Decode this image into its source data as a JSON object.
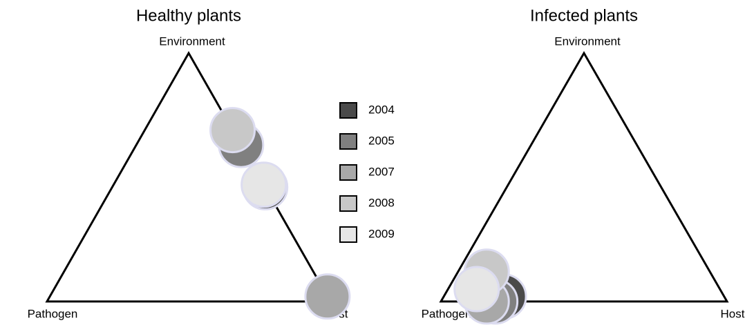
{
  "chart_data": [
    {
      "type": "ternary",
      "title": "Healthy plants",
      "vertex_labels": [
        "Pathogen",
        "Host",
        "Environment"
      ],
      "series": [
        {
          "name": "2004",
          "color": "#4a4a4a",
          "values": [
            0,
            0.54,
            0.46
          ]
        },
        {
          "name": "2005",
          "color": "#808080",
          "values": [
            0,
            0.37,
            0.63
          ]
        },
        {
          "name": "2007",
          "color": "#a8a8a8",
          "values": [
            0,
            0.98,
            0.02
          ]
        },
        {
          "name": "2008",
          "color": "#c8c8c8",
          "values": [
            0,
            0.31,
            0.69
          ]
        },
        {
          "name": "2009",
          "color": "#e6e6e6",
          "values": [
            0,
            0.53,
            0.47
          ]
        }
      ]
    },
    {
      "type": "ternary",
      "title": "Infected plants",
      "vertex_labels": [
        "Pathogen",
        "Host",
        "Environment"
      ],
      "series": [
        {
          "name": "2004",
          "color": "#4a4a4a",
          "values": [
            0.77,
            0.21,
            0.02
          ]
        },
        {
          "name": "2005",
          "color": "#808080",
          "values": [
            0.81,
            0.19,
            0
          ]
        },
        {
          "name": "2007",
          "color": "#a8a8a8",
          "values": [
            0.84,
            0.16,
            0
          ]
        },
        {
          "name": "2008",
          "color": "#c8c8c8",
          "values": [
            0.78,
            0.1,
            0.12
          ]
        },
        {
          "name": "2009",
          "color": "#e6e6e6",
          "values": [
            0.85,
            0.1,
            0.05
          ]
        }
      ]
    }
  ]
}
